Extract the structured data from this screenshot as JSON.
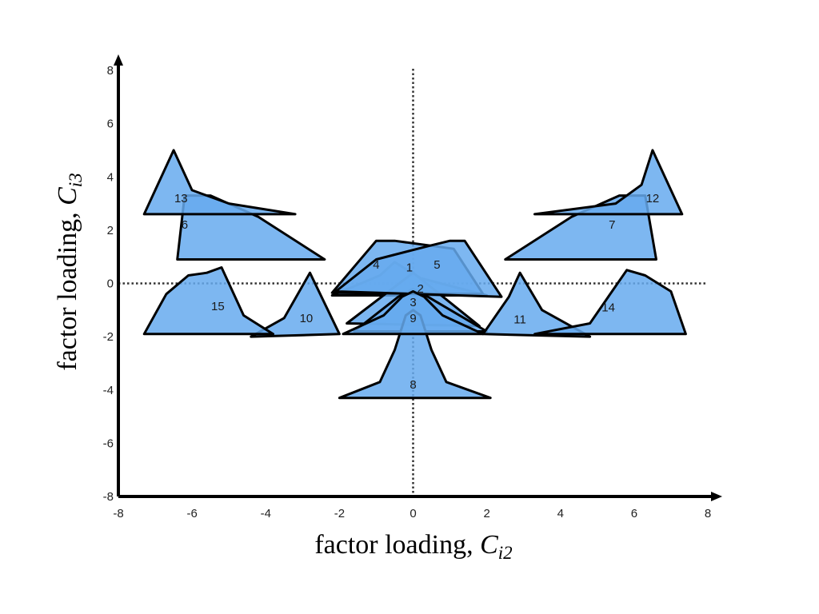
{
  "chart_data": {
    "type": "scatter",
    "xlabel": {
      "text": "factor loading, ",
      "symbol": "C",
      "subscript": "i2"
    },
    "ylabel": {
      "text": "factor loading, ",
      "symbol": "C",
      "subscript": "i3"
    },
    "xlim": [
      -8,
      8
    ],
    "ylim": [
      -8,
      8
    ],
    "xticks": [
      -8,
      -6,
      -4,
      -2,
      0,
      2,
      4,
      6,
      8
    ],
    "yticks": [
      -8,
      -6,
      -4,
      -2,
      0,
      2,
      4,
      6,
      8
    ],
    "reference_lines": {
      "x": 0,
      "y": 0,
      "style": "dotted"
    },
    "grid": false,
    "fill_color": "#66aaee",
    "overlap_color": "#3d8fe6",
    "edge_color": "#000000",
    "shapes": [
      {
        "label": "1",
        "label_at": [
          -0.1,
          0.6
        ],
        "points": [
          [
            -2.2,
            -0.45
          ],
          [
            -0.9,
            0.3
          ],
          [
            -0.5,
            0.8
          ],
          [
            0.2,
            0.2
          ],
          [
            2.0,
            -0.45
          ]
        ]
      },
      {
        "label": "2",
        "label_at": [
          0.2,
          -0.2
        ],
        "points": [
          [
            -1.8,
            -1.5
          ],
          [
            0.0,
            0.4
          ],
          [
            1.8,
            -1.6
          ]
        ]
      },
      {
        "label": "3",
        "label_at": [
          0.0,
          -0.7
        ],
        "points": [
          [
            -1.6,
            -1.8
          ],
          [
            -0.4,
            -0.5
          ],
          [
            0.0,
            -0.2
          ],
          [
            0.4,
            -0.5
          ],
          [
            2.0,
            -1.8
          ]
        ]
      },
      {
        "label": "4",
        "label_at": [
          -1.0,
          0.7
        ],
        "points": [
          [
            -2.2,
            -0.35
          ],
          [
            -1.0,
            1.6
          ],
          [
            -0.5,
            1.6
          ],
          [
            1.1,
            1.3
          ],
          [
            1.9,
            -0.4
          ]
        ]
      },
      {
        "label": "5",
        "label_at": [
          0.65,
          0.7
        ],
        "points": [
          [
            -2.1,
            -0.3
          ],
          [
            -1.0,
            0.9
          ],
          [
            0.4,
            1.4
          ],
          [
            1.0,
            1.6
          ],
          [
            1.4,
            1.6
          ],
          [
            2.4,
            -0.5
          ]
        ]
      },
      {
        "label": "6",
        "label_at": [
          -6.2,
          2.2
        ],
        "points": [
          [
            -6.4,
            0.9
          ],
          [
            -6.2,
            3.3
          ],
          [
            -5.5,
            3.3
          ],
          [
            -4.2,
            2.5
          ],
          [
            -2.4,
            0.9
          ]
        ]
      },
      {
        "label": "7",
        "label_at": [
          5.4,
          2.2
        ],
        "points": [
          [
            2.5,
            0.9
          ],
          [
            4.3,
            2.5
          ],
          [
            5.6,
            3.3
          ],
          [
            6.3,
            3.3
          ],
          [
            6.6,
            0.9
          ]
        ]
      },
      {
        "label": "8",
        "label_at": [
          0.0,
          -3.8
        ],
        "points": [
          [
            -2.0,
            -4.3
          ],
          [
            -0.9,
            -3.7
          ],
          [
            -0.5,
            -2.5
          ],
          [
            -0.2,
            -1.2
          ],
          [
            0.0,
            -1.0
          ],
          [
            0.2,
            -1.2
          ],
          [
            0.5,
            -2.5
          ],
          [
            0.9,
            -3.7
          ],
          [
            2.1,
            -4.3
          ]
        ]
      },
      {
        "label": "9",
        "label_at": [
          0.0,
          -1.3
        ],
        "points": [
          [
            -1.9,
            -1.9
          ],
          [
            -0.8,
            -1.2
          ],
          [
            -0.3,
            -0.5
          ],
          [
            0.0,
            -0.3
          ],
          [
            0.3,
            -0.5
          ],
          [
            0.8,
            -1.2
          ],
          [
            1.9,
            -1.9
          ]
        ]
      },
      {
        "label": "10",
        "label_at": [
          -2.9,
          -1.3
        ],
        "points": [
          [
            -4.4,
            -2.0
          ],
          [
            -3.5,
            -1.3
          ],
          [
            -2.8,
            0.4
          ],
          [
            -2.0,
            -1.9
          ],
          [
            -4.4,
            -2.0
          ]
        ]
      },
      {
        "label": "11",
        "label_at": [
          2.9,
          -1.35
        ],
        "points": [
          [
            1.9,
            -1.9
          ],
          [
            2.6,
            -0.5
          ],
          [
            2.9,
            0.4
          ],
          [
            3.5,
            -1.0
          ],
          [
            4.8,
            -2.0
          ],
          [
            1.9,
            -1.9
          ]
        ]
      },
      {
        "label": "12",
        "label_at": [
          6.5,
          3.2
        ],
        "points": [
          [
            3.3,
            2.6
          ],
          [
            5.5,
            3.0
          ],
          [
            6.2,
            3.7
          ],
          [
            6.5,
            5.0
          ],
          [
            7.3,
            2.6
          ]
        ]
      },
      {
        "label": "13",
        "label_at": [
          -6.3,
          3.2
        ],
        "points": [
          [
            -7.3,
            2.6
          ],
          [
            -6.5,
            5.0
          ],
          [
            -6.0,
            3.5
          ],
          [
            -5.0,
            3.0
          ],
          [
            -3.2,
            2.6
          ]
        ]
      },
      {
        "label": "14",
        "label_at": [
          5.3,
          -0.9
        ],
        "points": [
          [
            3.3,
            -1.9
          ],
          [
            4.8,
            -1.5
          ],
          [
            5.4,
            -0.3
          ],
          [
            5.8,
            0.5
          ],
          [
            6.3,
            0.3
          ],
          [
            7.0,
            -0.3
          ],
          [
            7.4,
            -1.9
          ]
        ]
      },
      {
        "label": "15",
        "label_at": [
          -5.3,
          -0.85
        ],
        "points": [
          [
            -7.3,
            -1.9
          ],
          [
            -6.7,
            -0.4
          ],
          [
            -6.1,
            0.3
          ],
          [
            -5.6,
            0.4
          ],
          [
            -5.2,
            0.6
          ],
          [
            -4.6,
            -1.2
          ],
          [
            -3.8,
            -1.9
          ]
        ]
      }
    ]
  }
}
